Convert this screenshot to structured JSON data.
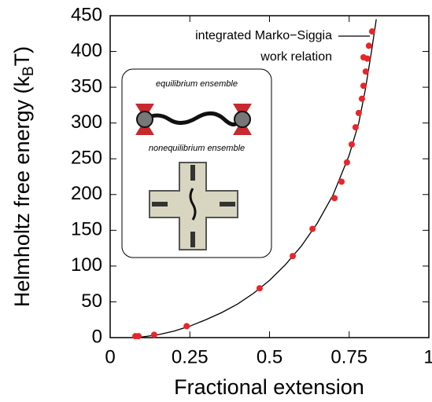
{
  "chart_data": {
    "type": "line_scatter",
    "x_label": "Fractional extension",
    "y_label": [
      "Helmholtz free energy (k",
      "B",
      "T)"
    ],
    "xlim": [
      0,
      1
    ],
    "xticks": [
      0,
      0.25,
      0.5,
      0.75,
      1
    ],
    "ylim": [
      0,
      450
    ],
    "yticks": [
      0,
      50,
      100,
      150,
      200,
      250,
      300,
      350,
      400,
      450
    ],
    "legend": "top-right",
    "annotations": [
      "equilibrium ensemble",
      "nonequilibrium ensemble"
    ],
    "series": [
      {
        "name": "integrated Marko−Siggia",
        "type": "line",
        "color": "#000000",
        "x": [
          0.07,
          0.1,
          0.15,
          0.2,
          0.25,
          0.3,
          0.35,
          0.4,
          0.45,
          0.5,
          0.55,
          0.6,
          0.65,
          0.7,
          0.75,
          0.78,
          0.8,
          0.82,
          0.835
        ],
        "values": [
          0,
          1,
          4,
          9,
          16,
          25,
          35,
          47,
          62,
          80,
          102,
          128,
          160,
          200,
          255,
          300,
          345,
          400,
          445
        ]
      },
      {
        "name": "work relation",
        "type": "scatter",
        "color": "#e8262a",
        "x": [
          0.079,
          0.089,
          0.138,
          0.24,
          0.469,
          0.573,
          0.635,
          0.704,
          0.726,
          0.743,
          0.758,
          0.77,
          0.78,
          0.79,
          0.795,
          0.802,
          0.807,
          0.812,
          0.822
        ],
        "values": [
          2,
          2,
          4,
          16,
          69,
          114,
          152,
          195,
          218,
          245,
          270,
          294,
          314,
          334,
          352,
          372,
          390,
          408,
          428
        ]
      }
    ]
  }
}
